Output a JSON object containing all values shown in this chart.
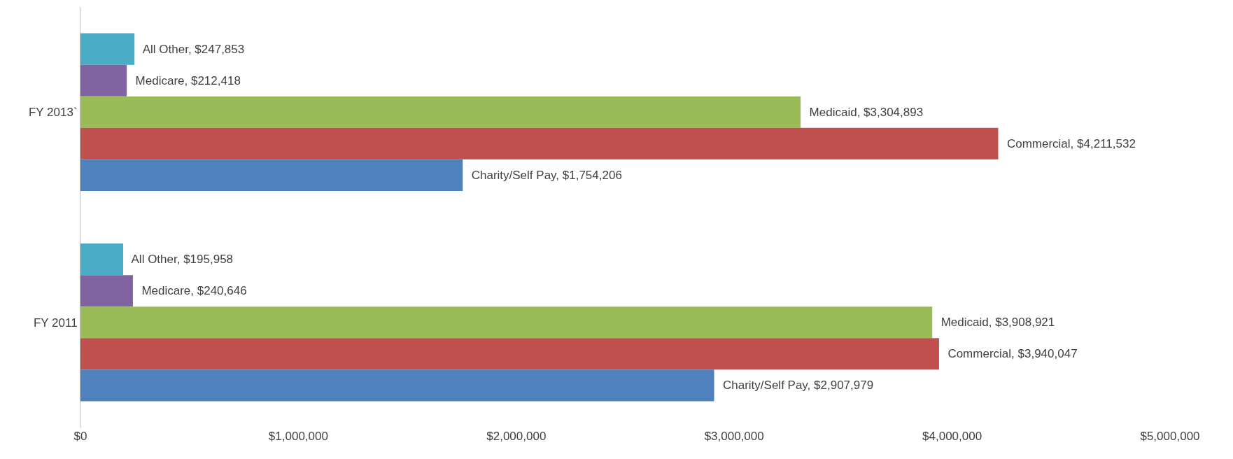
{
  "chart_data": {
    "type": "bar",
    "orientation": "horizontal",
    "categories": [
      "FY 2013`",
      "FY 2011"
    ],
    "series": [
      {
        "color": "#4bacc6",
        "values": [
          247853,
          195958
        ],
        "value_labels": [
          "All Other, $247,853",
          "All Other, $195,958"
        ]
      },
      {
        "color": "#8064a2",
        "values": [
          212418,
          240646
        ],
        "value_labels": [
          "Medicare, $212,418",
          "Medicare, $240,646"
        ]
      },
      {
        "color": "#9bbb59",
        "values": [
          3304893,
          3908921
        ],
        "value_labels": [
          "Medicaid, $3,304,893",
          "Medicaid, $3,908,921"
        ]
      },
      {
        "color": "#c0504d",
        "values": [
          4211532,
          3940047
        ],
        "value_labels": [
          "Commercial, $4,211,532",
          "Commercial, $3,940,047"
        ]
      },
      {
        "color": "#4f81bd",
        "values": [
          1754206,
          2907979
        ],
        "value_labels": [
          "Charity/Self Pay, $1,754,206",
          "Charity/Self Pay, $2,907,979"
        ]
      }
    ],
    "xlim": [
      0,
      5000000
    ],
    "xticks": [
      {
        "value": 0,
        "label": "$0"
      },
      {
        "value": 1000000,
        "label": "$1,000,000"
      },
      {
        "value": 2000000,
        "label": "$2,000,000"
      },
      {
        "value": 3000000,
        "label": "$3,000,000"
      },
      {
        "value": 4000000,
        "label": "$4,000,000"
      },
      {
        "value": 5000000,
        "label": "$5,000,000"
      }
    ],
    "grid": false,
    "legend": false
  }
}
